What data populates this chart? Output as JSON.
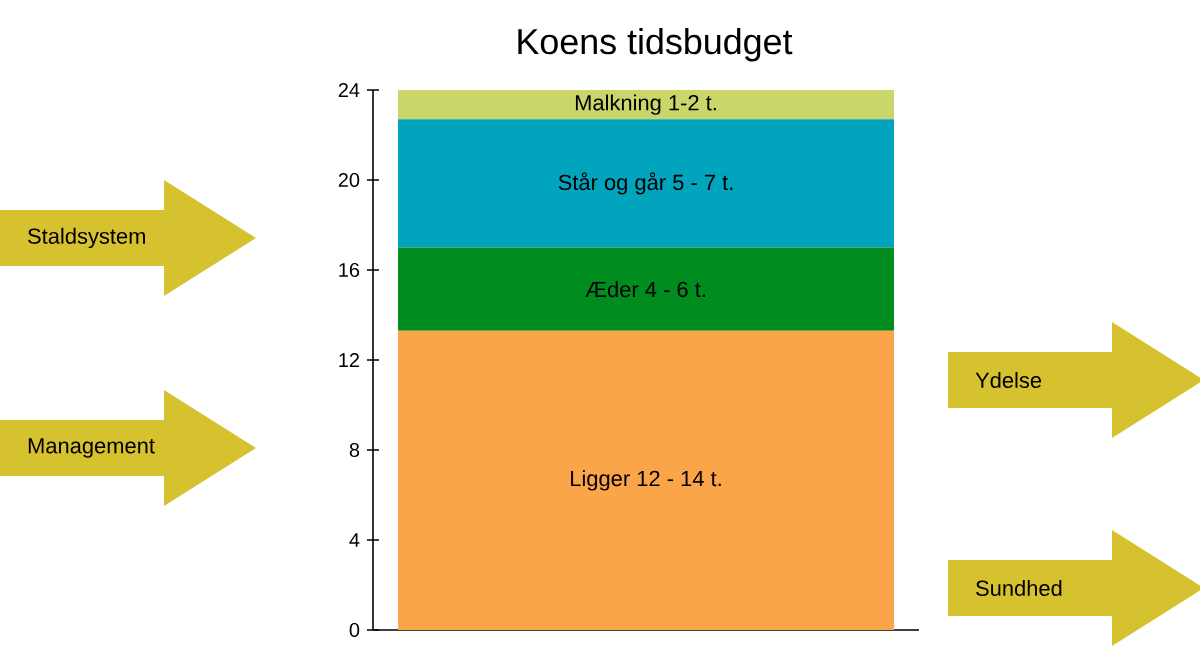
{
  "chart_data": {
    "type": "bar",
    "title": "Koens tidsbudget",
    "categories": [
      null
    ],
    "stacked": true,
    "series": [
      {
        "name": "Ligger 12 - 14 t.",
        "color": "#fba54a",
        "values": [
          13.3
        ]
      },
      {
        "name": "Æder 4 - 6 t.",
        "color": "#008c1e",
        "values": [
          3.7
        ]
      },
      {
        "name": "Står og går 5 - 7 t.",
        "color": "#00a5bd",
        "values": [
          5.7
        ]
      },
      {
        "name": "Malkning 1-2 t.",
        "color": "#cbd66a",
        "values": [
          1.3
        ]
      }
    ],
    "ylim": [
      0,
      24
    ],
    "yticks": [
      0,
      4,
      8,
      12,
      16,
      20,
      24
    ],
    "annotations": [
      "Staldsystem",
      "Management",
      "Ydelse",
      "Sundhed"
    ]
  }
}
